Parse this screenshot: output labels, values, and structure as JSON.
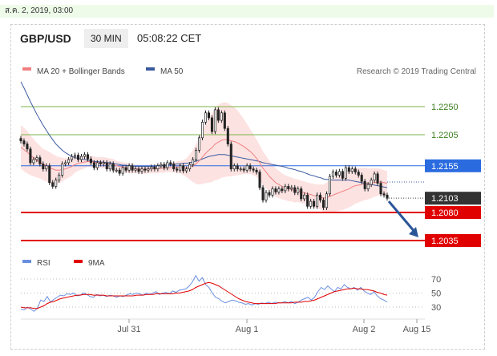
{
  "datetime": "ส.ค. 2, 2019, 03:00",
  "header": {
    "symbol": "GBP/USD",
    "timeframe": "30 MIN",
    "time": "05:08:22 CET"
  },
  "legend": {
    "ma20": "MA 20 + Bollinger Bands",
    "ma50": "MA 50",
    "credit": "Research © 2019 Trading Central"
  },
  "rsi_legend": {
    "rsi": "RSI",
    "ma": "9MA"
  },
  "colors": {
    "resistance_green": "#7ab648",
    "pivot_blue": "#2a6be0",
    "support_red": "#e00000",
    "last_price_bg": "#333333",
    "ma50_line": "#3a5aa0",
    "ma20_line": "#f08080",
    "bollinger_fill": "#fde2e2",
    "rsi_line": "#6b8fe0",
    "rsi_ma_line": "#e00000"
  },
  "chart_data": [
    {
      "type": "candlestick",
      "ylim": [
        2.0,
        2.3
      ],
      "x_ticks": [
        "Jul 31",
        "Aug 1",
        "Aug 2",
        "Aug 15"
      ],
      "levels": [
        {
          "label": "1.2250",
          "value": 1.225,
          "kind": "resistance"
        },
        {
          "label": "1.2205",
          "value": 1.2205,
          "kind": "resistance"
        },
        {
          "label": "1.2155",
          "value": 1.2155,
          "kind": "pivot"
        },
        {
          "label": "1.2103",
          "value": 1.2103,
          "kind": "last"
        },
        {
          "label": "1.2080",
          "value": 1.208,
          "kind": "support"
        },
        {
          "label": "1.2035",
          "value": 1.2035,
          "kind": "support"
        }
      ],
      "close": [
        1.2195,
        1.219,
        1.2182,
        1.216,
        1.2165,
        1.2168,
        1.2158,
        1.215,
        1.2155,
        1.2128,
        1.2122,
        1.2132,
        1.214,
        1.2158,
        1.216,
        1.2165,
        1.217,
        1.2172,
        1.2165,
        1.217,
        1.2173,
        1.2166,
        1.216,
        1.2152,
        1.216,
        1.2158,
        1.216,
        1.215,
        1.2158,
        1.2148,
        1.2148,
        1.2143,
        1.2152,
        1.2148,
        1.2155,
        1.2148,
        1.215,
        1.2146,
        1.215,
        1.2148,
        1.215,
        1.2153,
        1.215,
        1.2155,
        1.2157,
        1.2152,
        1.216,
        1.2158,
        1.215,
        1.2148,
        1.2155,
        1.2147,
        1.215,
        1.2157,
        1.2165,
        1.218,
        1.22,
        1.2225,
        1.224,
        1.2232,
        1.221,
        1.2245,
        1.2228,
        1.224,
        1.2215,
        1.219,
        1.215,
        1.2155,
        1.215,
        1.215,
        1.2148,
        1.2155,
        1.215,
        1.2148,
        1.2145,
        1.212,
        1.21,
        1.2112,
        1.2108,
        1.2118,
        1.2113,
        1.2118,
        1.2115,
        1.2122,
        1.2118,
        1.212,
        1.2112,
        1.2118,
        1.2102,
        1.2108,
        1.209,
        1.2098,
        1.209,
        1.2108,
        1.21,
        1.2088,
        1.211,
        1.2138,
        1.2145,
        1.214,
        1.2146,
        1.2135,
        1.2152,
        1.2146,
        1.215,
        1.2145,
        1.214,
        1.213,
        1.2118,
        1.2125,
        1.2132,
        1.2142,
        1.2127,
        1.211,
        1.2108,
        1.2103
      ],
      "ma20": [
        1.2185,
        1.2181,
        1.2177,
        1.2172,
        1.2168,
        1.2164,
        1.2161,
        1.2157,
        1.2155,
        1.2152,
        1.215,
        1.2148,
        1.2148,
        1.2149,
        1.215,
        1.2152,
        1.2154,
        1.2157,
        1.2159,
        1.216,
        1.2161,
        1.2162,
        1.2162,
        1.2161,
        1.216,
        1.216,
        1.216,
        1.2159,
        1.2158,
        1.2157,
        1.2155,
        1.2154,
        1.2153,
        1.2152,
        1.2151,
        1.2151,
        1.215,
        1.215,
        1.2149,
        1.2149,
        1.215,
        1.215,
        1.215,
        1.215,
        1.2151,
        1.2151,
        1.2152,
        1.2152,
        1.2152,
        1.2153,
        1.2153,
        1.2152,
        1.2152,
        1.2153,
        1.2155,
        1.2158,
        1.2163,
        1.2169,
        1.2175,
        1.218,
        1.2184,
        1.219,
        1.2193,
        1.2196,
        1.2197,
        1.2197,
        1.2195,
        1.2194,
        1.2192,
        1.2189,
        1.2186,
        1.2182,
        1.2178,
        1.2173,
        1.2167,
        1.216,
        1.2151,
        1.2145,
        1.2138,
        1.2133,
        1.2128,
        1.2125,
        1.2122,
        1.212,
        1.2118,
        1.2117,
        1.2115,
        1.2115,
        1.2113,
        1.2112,
        1.211,
        1.2109,
        1.2107,
        1.2106,
        1.2105,
        1.2103,
        1.2104,
        1.2106,
        1.2108,
        1.211,
        1.2112,
        1.2114,
        1.2116,
        1.2118,
        1.2121,
        1.2123,
        1.2124,
        1.2125,
        1.2126,
        1.2126,
        1.2127,
        1.2128,
        1.2129,
        1.2129,
        1.2128,
        1.2127
      ],
      "ma50": [
        1.229,
        1.228,
        1.2269,
        1.2258,
        1.2248,
        1.2238,
        1.2229,
        1.222,
        1.2212,
        1.2204,
        1.2197,
        1.219,
        1.2185,
        1.218,
        1.2176,
        1.2173,
        1.217,
        1.2168,
        1.2167,
        1.2166,
        1.2165,
        1.2164,
        1.2163,
        1.2162,
        1.2162,
        1.2161,
        1.2161,
        1.216,
        1.216,
        1.2159,
        1.2158,
        1.2157,
        1.2156,
        1.2156,
        1.2155,
        1.2155,
        1.2154,
        1.2154,
        1.2154,
        1.2154,
        1.2154,
        1.2154,
        1.2154,
        1.2155,
        1.2155,
        1.2156,
        1.2156,
        1.2157,
        1.2157,
        1.2158,
        1.2158,
        1.2159,
        1.2159,
        1.216,
        1.2161,
        1.2163,
        1.2164,
        1.2166,
        1.2168,
        1.217,
        1.2171,
        1.2172,
        1.2173,
        1.2173,
        1.2173,
        1.2172,
        1.2171,
        1.217,
        1.2169,
        1.2168,
        1.2167,
        1.2166,
        1.2165,
        1.2164,
        1.2163,
        1.2162,
        1.216,
        1.2159,
        1.2158,
        1.2157,
        1.2156,
        1.2155,
        1.2154,
        1.2153,
        1.2151,
        1.215,
        1.2149,
        1.2147,
        1.2146,
        1.2144,
        1.2142,
        1.214,
        1.2139,
        1.2137,
        1.2136,
        1.2134,
        1.2133,
        1.2133,
        1.2132,
        1.2132,
        1.2132,
        1.2132,
        1.2132,
        1.2132,
        1.2131,
        1.213,
        1.2129,
        1.2128,
        1.2127,
        1.2126,
        1.2125,
        1.2124,
        1.2123,
        1.2122,
        1.2121,
        1.212
      ],
      "bb_width": [
        0.0035,
        0.0035,
        0.0034,
        0.0032,
        0.003,
        0.0028,
        0.0026,
        0.0025,
        0.0025,
        0.0025,
        0.0024,
        0.0023,
        0.0021,
        0.0019,
        0.0017,
        0.0016,
        0.0015,
        0.0013,
        0.0012,
        0.0011,
        0.001,
        0.0009,
        0.0009,
        0.0009,
        0.0009,
        0.0009,
        0.0009,
        0.0009,
        0.0009,
        0.0009,
        0.0008,
        0.0008,
        0.0008,
        0.0008,
        0.0008,
        0.0008,
        0.0007,
        0.0007,
        0.0007,
        0.0007,
        0.0007,
        0.0007,
        0.0007,
        0.0007,
        0.0007,
        0.0007,
        0.0007,
        0.0007,
        0.0008,
        0.0009,
        0.001,
        0.0012,
        0.0015,
        0.002,
        0.0026,
        0.0032,
        0.0038,
        0.0043,
        0.0048,
        0.0052,
        0.0055,
        0.0058,
        0.006,
        0.006,
        0.006,
        0.0059,
        0.0057,
        0.0055,
        0.0052,
        0.0048,
        0.0044,
        0.004,
        0.0036,
        0.0033,
        0.003,
        0.0028,
        0.0027,
        0.0026,
        0.0025,
        0.0024,
        0.0023,
        0.0022,
        0.0021,
        0.002,
        0.002,
        0.0019,
        0.0019,
        0.0018,
        0.0018,
        0.0018,
        0.0018,
        0.0018,
        0.0019,
        0.0019,
        0.002,
        0.0022,
        0.0024,
        0.0026,
        0.0027,
        0.0028,
        0.0029,
        0.003,
        0.003,
        0.003,
        0.003,
        0.0029,
        0.0028,
        0.0027,
        0.0026,
        0.0025,
        0.0024,
        0.0023,
        0.0022,
        0.0021,
        0.002,
        0.002
      ]
    },
    {
      "type": "line",
      "title": "RSI",
      "ylim": [
        18,
        82
      ],
      "y_ticks": [
        70,
        50,
        30
      ],
      "series": [
        {
          "name": "RSI",
          "values": [
            27,
            26,
            30,
            27,
            24,
            28,
            40,
            38,
            45,
            37,
            41,
            44,
            47,
            46,
            49,
            48,
            50,
            46,
            47,
            50,
            48,
            45,
            44,
            48,
            46,
            47,
            45,
            47,
            46,
            44,
            46,
            45,
            47,
            49,
            48,
            50,
            49,
            47,
            50,
            48,
            50,
            52,
            48,
            50,
            51,
            49,
            53,
            51,
            54,
            55,
            56,
            60,
            66,
            75,
            67,
            72,
            62,
            58,
            50,
            44,
            42,
            38,
            36,
            38,
            40,
            39,
            37,
            36,
            34,
            35,
            33,
            35,
            34,
            36,
            35,
            37,
            35,
            37,
            36,
            36,
            38,
            36,
            38,
            35,
            37,
            40,
            42,
            44,
            40,
            44,
            52,
            58,
            55,
            60,
            56,
            52,
            58,
            56,
            62,
            58,
            56,
            58,
            54,
            58,
            53,
            50,
            48,
            52,
            46,
            42,
            40,
            37
          ]
        },
        {
          "name": "9MA",
          "values": [
            30,
            29,
            29,
            29,
            28,
            28,
            30,
            32,
            35,
            37,
            38,
            40,
            42,
            43,
            44,
            45,
            46,
            47,
            47,
            48,
            48,
            48,
            47,
            47,
            47,
            47,
            46,
            46,
            46,
            46,
            46,
            46,
            46,
            46,
            46,
            47,
            47,
            47,
            48,
            48,
            48,
            49,
            49,
            49,
            49,
            49,
            49,
            50,
            50,
            51,
            52,
            53,
            55,
            58,
            60,
            62,
            64,
            65,
            64,
            62,
            60,
            57,
            54,
            51,
            48,
            45,
            42,
            40,
            38,
            37,
            36,
            35,
            35,
            35,
            35,
            35,
            35,
            35,
            36,
            36,
            36,
            36,
            36,
            37,
            37,
            37,
            38,
            38,
            39,
            40,
            42,
            44,
            46,
            48,
            50,
            52,
            53,
            54,
            55,
            56,
            56,
            57,
            56,
            56,
            55,
            55,
            54,
            53,
            51,
            50,
            48,
            47
          ]
        }
      ]
    }
  ]
}
